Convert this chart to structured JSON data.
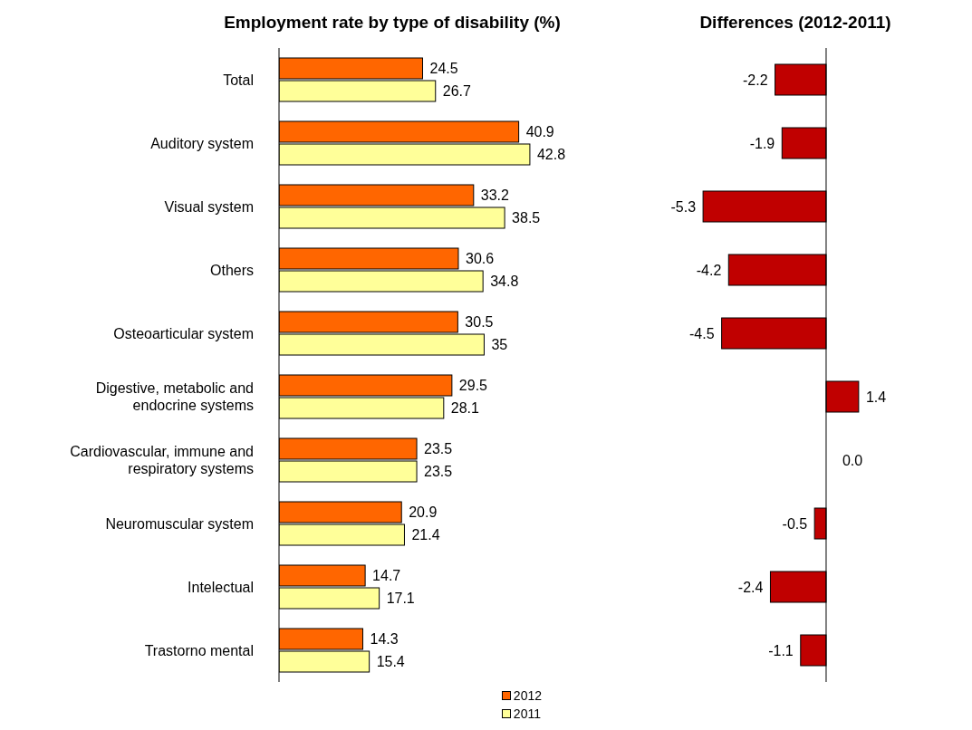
{
  "chart_data": [
    {
      "type": "bar",
      "orientation": "horizontal",
      "title": "Employment rate by type of disability (%)",
      "categories": [
        "Total",
        "Auditory system",
        "Visual system",
        "Others",
        "Osteoarticular system",
        "Digestive, metabolic and endocrine systems",
        "Cardiovascular, immune and respiratory systems",
        "Neuromuscular system",
        "Intelectual",
        "Trastorno mental"
      ],
      "series": [
        {
          "name": "2012",
          "color": "#ff6600",
          "values": [
            24.5,
            40.9,
            33.2,
            30.6,
            30.5,
            29.5,
            23.5,
            20.9,
            14.7,
            14.3
          ]
        },
        {
          "name": "2011",
          "color": "#ffff99",
          "values": [
            26.7,
            42.8,
            38.5,
            34.8,
            35,
            28.1,
            23.5,
            21.4,
            17.1,
            15.4
          ]
        }
      ],
      "data_labels": true,
      "legend": "bottom right",
      "tick_labels": "y",
      "grid": false
    },
    {
      "type": "bar",
      "orientation": "horizontal",
      "title": "Differences (2012-2011)",
      "categories": [
        null,
        null,
        null,
        null,
        null,
        null,
        null,
        null,
        null,
        null
      ],
      "series": [
        {
          "color": "#c00000",
          "values": [
            -2.2,
            -1.9,
            -5.3,
            -4.2,
            -4.5,
            1.4,
            0,
            -0.5,
            -2.4,
            -1.1
          ],
          "value_labels": [
            "-2.2",
            "-1.9",
            "-5.3",
            "-4.2",
            "-4.5",
            "1.4",
            "0.0",
            "-0.5",
            "-2.4",
            "-1.1"
          ]
        }
      ],
      "tick_labels": false,
      "grid": false,
      "legend": false
    }
  ]
}
